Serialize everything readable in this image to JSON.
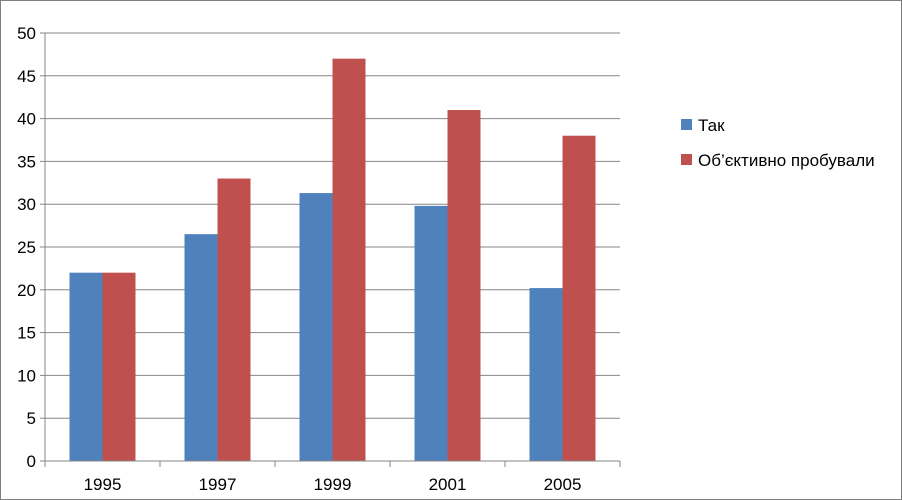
{
  "chart_data": {
    "type": "bar",
    "title": "",
    "xlabel": "",
    "ylabel": "",
    "categories": [
      "1995",
      "1997",
      "1999",
      "2001",
      "2005"
    ],
    "ylim": [
      0,
      50
    ],
    "ytick_step": 5,
    "grid": true,
    "legend_position": "right",
    "series": [
      {
        "name": "Так",
        "color": "#4f81bd",
        "values": [
          22,
          26.5,
          31.3,
          29.8,
          20.2
        ]
      },
      {
        "name": "Об’єктивно пробували",
        "color": "#c0504d",
        "values": [
          22,
          33,
          47,
          41,
          38
        ]
      }
    ]
  }
}
